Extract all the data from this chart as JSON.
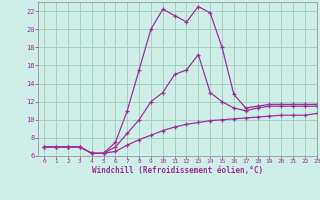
{
  "xlabel": "Windchill (Refroidissement éolien,°C)",
  "background_color": "#d0eee8",
  "grid_color": "#a0ccbb",
  "line_color": "#993399",
  "x": [
    0,
    1,
    2,
    3,
    4,
    5,
    6,
    7,
    8,
    9,
    10,
    11,
    12,
    13,
    14,
    15,
    16,
    17,
    18,
    19,
    20,
    21,
    22,
    23
  ],
  "series1": [
    7.0,
    7.0,
    7.0,
    7.0,
    6.3,
    6.3,
    6.5,
    7.2,
    7.8,
    8.3,
    8.8,
    9.2,
    9.5,
    9.7,
    9.9,
    10.0,
    10.1,
    10.2,
    10.3,
    10.4,
    10.5,
    10.5,
    10.5,
    10.7
  ],
  "series2": [
    7.0,
    7.0,
    7.0,
    7.0,
    6.3,
    6.3,
    7.0,
    8.5,
    10.0,
    12.0,
    13.0,
    15.0,
    15.5,
    17.2,
    13.0,
    12.0,
    11.3,
    11.0,
    11.3,
    11.5,
    11.5,
    11.5,
    11.5,
    11.5
  ],
  "series3": [
    7.0,
    7.0,
    7.0,
    7.0,
    6.3,
    6.3,
    7.5,
    11.0,
    15.5,
    20.0,
    22.2,
    21.5,
    20.8,
    22.5,
    21.8,
    18.0,
    12.8,
    11.3,
    11.5,
    11.7,
    11.7,
    11.7,
    11.7,
    11.7
  ],
  "ylim": [
    6,
    23
  ],
  "xlim": [
    -0.5,
    23
  ],
  "yticks": [
    6,
    8,
    10,
    12,
    14,
    16,
    18,
    20,
    22
  ],
  "xticks": [
    0,
    1,
    2,
    3,
    4,
    5,
    6,
    7,
    8,
    9,
    10,
    11,
    12,
    13,
    14,
    15,
    16,
    17,
    18,
    19,
    20,
    21,
    22,
    23
  ]
}
